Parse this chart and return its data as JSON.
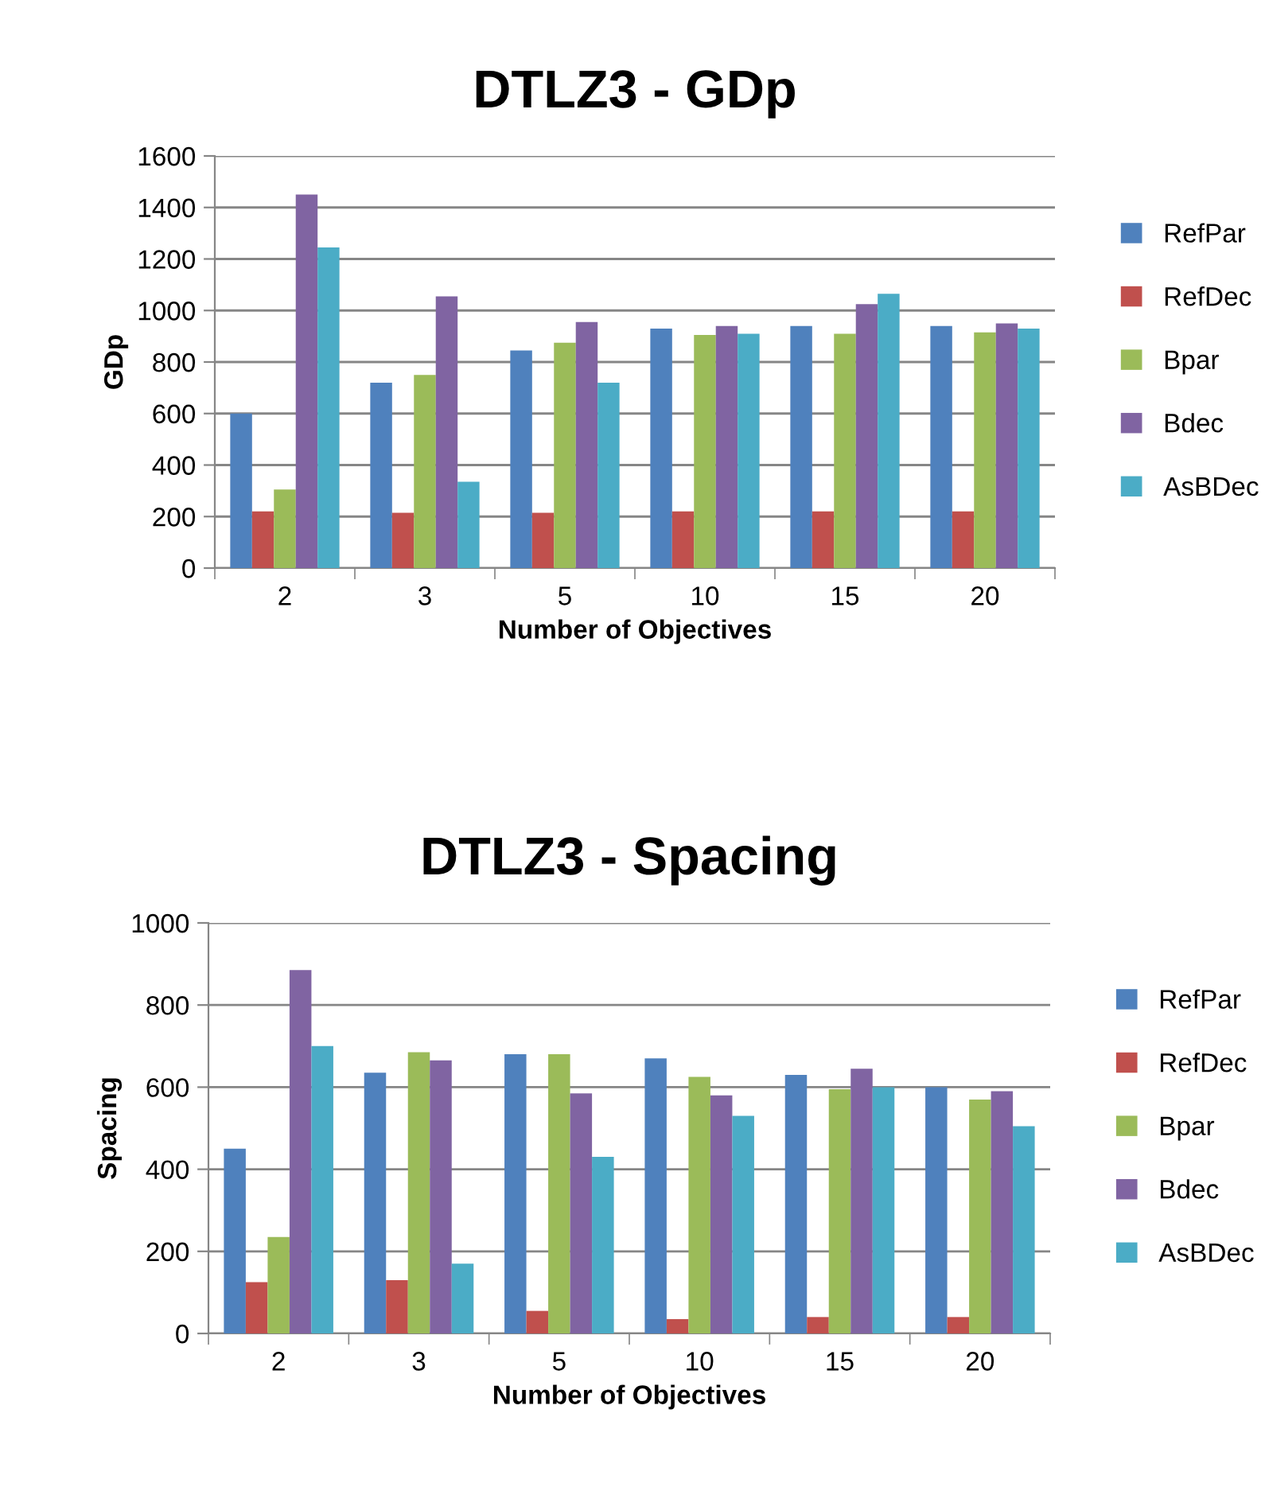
{
  "chart_data": [
    {
      "type": "bar",
      "title": "DTLZ3 - GDp",
      "xlabel": "Number of Objectives",
      "ylabel": "GDp",
      "categories": [
        "2",
        "3",
        "5",
        "10",
        "15",
        "20"
      ],
      "ylim": [
        0,
        1600
      ],
      "yticks": [
        0,
        200,
        400,
        600,
        800,
        1000,
        1200,
        1400,
        1600
      ],
      "grid": "y",
      "legend": "right",
      "series": [
        {
          "name": "RefPar",
          "color": "#4f81bd",
          "values": [
            600,
            720,
            845,
            930,
            940,
            940
          ]
        },
        {
          "name": "RefDec",
          "color": "#c0504d",
          "values": [
            220,
            215,
            215,
            220,
            220,
            220
          ]
        },
        {
          "name": "Bpar",
          "color": "#9bbb59",
          "values": [
            305,
            750,
            875,
            905,
            910,
            915
          ]
        },
        {
          "name": "Bdec",
          "color": "#8064a2",
          "values": [
            1450,
            1055,
            955,
            940,
            1025,
            950
          ]
        },
        {
          "name": "AsBDec",
          "color": "#4bacc6",
          "values": [
            1245,
            335,
            720,
            910,
            1065,
            930
          ]
        }
      ]
    },
    {
      "type": "bar",
      "title": "DTLZ3 - Spacing",
      "xlabel": "Number of Objectives",
      "ylabel": "Spacing",
      "categories": [
        "2",
        "3",
        "5",
        "10",
        "15",
        "20"
      ],
      "ylim": [
        0,
        1000
      ],
      "yticks": [
        0,
        200,
        400,
        600,
        800,
        1000
      ],
      "grid": "y",
      "legend": "right",
      "series": [
        {
          "name": "RefPar",
          "color": "#4f81bd",
          "values": [
            450,
            635,
            680,
            670,
            630,
            600
          ]
        },
        {
          "name": "RefDec",
          "color": "#c0504d",
          "values": [
            125,
            130,
            55,
            35,
            40,
            40
          ]
        },
        {
          "name": "Bpar",
          "color": "#9bbb59",
          "values": [
            235,
            685,
            680,
            625,
            595,
            570
          ]
        },
        {
          "name": "Bdec",
          "color": "#8064a2",
          "values": [
            885,
            665,
            585,
            580,
            645,
            590
          ]
        },
        {
          "name": "AsBDec",
          "color": "#4bacc6",
          "values": [
            700,
            170,
            430,
            530,
            600,
            505
          ]
        }
      ]
    }
  ]
}
